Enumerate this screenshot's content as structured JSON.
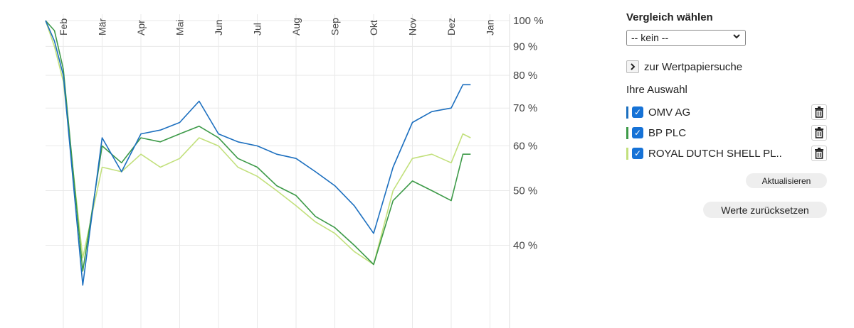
{
  "chart_data": {
    "type": "line",
    "months": [
      "Feb",
      "Mär",
      "Apr",
      "Mai",
      "Jun",
      "Jul",
      "Aug",
      "Sep",
      "Okt",
      "Nov",
      "Dez",
      "Jan"
    ],
    "y_ticks": [
      {
        "value": 100,
        "label": "100 %"
      },
      {
        "value": 90,
        "label": "90 %"
      },
      {
        "value": 80,
        "label": "80 %"
      },
      {
        "value": 70,
        "label": "70 %"
      },
      {
        "value": 60,
        "label": "60 %"
      },
      {
        "value": 50,
        "label": "50 %"
      },
      {
        "value": 40,
        "label": "40 %"
      }
    ],
    "y_scale": "log",
    "ylim": [
      33,
      100
    ],
    "grid": true,
    "x": [
      0,
      0.5,
      1,
      1.5,
      2,
      2.5,
      3,
      3.5,
      4,
      4.5,
      5,
      5.5,
      6,
      6.5,
      7,
      7.5,
      8,
      8.5,
      9,
      9.5,
      10,
      10.5,
      11,
      11.3,
      11.5
    ],
    "series": [
      {
        "name": "OMV AG",
        "color": "#1c6fbf",
        "values": [
          100,
          92,
          80,
          34,
          62,
          54,
          63,
          64,
          66,
          72,
          63,
          61,
          60,
          58,
          57,
          54,
          51,
          47,
          42,
          55,
          66,
          69,
          70,
          77,
          77
        ]
      },
      {
        "name": "BP PLC",
        "color": "#3d9a48",
        "values": [
          100,
          96,
          82,
          36,
          60,
          56,
          62,
          61,
          63,
          65,
          62,
          57,
          55,
          51,
          49,
          45,
          43,
          40,
          37,
          48,
          52,
          50,
          48,
          58,
          58
        ]
      },
      {
        "name": "ROYAL DUTCH SHELL PL..",
        "color": "#c2e07c",
        "values": [
          100,
          90,
          78,
          38,
          55,
          54,
          58,
          55,
          57,
          62,
          60,
          55,
          53,
          50,
          47,
          44,
          42,
          39,
          37,
          50,
          57,
          58,
          56,
          63,
          62
        ]
      }
    ]
  },
  "side": {
    "compare_title": "Vergleich wählen",
    "select_value": "-- kein --",
    "search_link": "zur Wertpapiersuche",
    "selection_title": "Ihre Auswahl",
    "items": [
      {
        "name": "OMV AG",
        "color": "#1c6fbf"
      },
      {
        "name": "BP PLC",
        "color": "#3d9a48"
      },
      {
        "name": "ROYAL DUTCH SHELL PL..",
        "color": "#c2e07c"
      }
    ],
    "update_button": "Aktualisieren",
    "reset_button": "Werte zurücksetzen"
  },
  "icons": {
    "select": "chevron-down-icon",
    "search": "chevron-right-icon",
    "checkbox": "checkmark-icon",
    "delete": "trash-icon"
  }
}
